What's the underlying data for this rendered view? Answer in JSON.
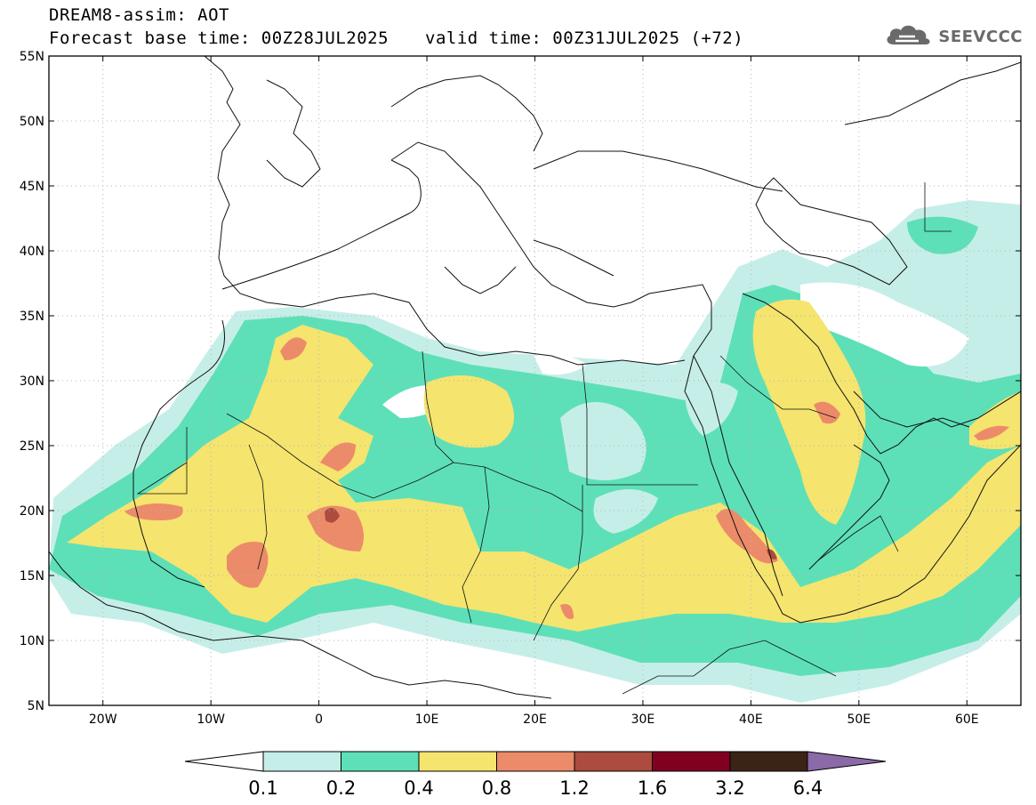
{
  "header": {
    "model_title": "DREAM8-assim: AOT",
    "base_time": "Forecast base time: 00Z28JUL2025",
    "valid_time": "valid time: 00Z31JUL2025 (+72)"
  },
  "logo": {
    "icon": "cloud-icon",
    "text": "SEEVCCC"
  },
  "map": {
    "lat_labels": [
      "55N",
      "50N",
      "45N",
      "40N",
      "35N",
      "30N",
      "25N",
      "20N",
      "15N",
      "10N",
      "5N"
    ],
    "lon_labels": [
      "20W",
      "10W",
      "0",
      "10E",
      "20E",
      "30E",
      "40E",
      "50E",
      "60E"
    ],
    "extent": {
      "lon_min": -25,
      "lon_max": 65,
      "lat_min": 5,
      "lat_max": 55
    }
  },
  "colorbar": {
    "labels": [
      "0.1",
      "0.2",
      "0.4",
      "0.8",
      "1.2",
      "1.6",
      "3.2",
      "6.4"
    ],
    "colors": [
      "#c6eee8",
      "#5de0b8",
      "#f5e46e",
      "#ec8b6a",
      "#ab4c3e",
      "#810021",
      "#3b2416",
      "#8b6aa8"
    ],
    "under_color": "#ffffff"
  },
  "colors": {
    "coast": "#111111",
    "grid": "#b5b5b5"
  }
}
